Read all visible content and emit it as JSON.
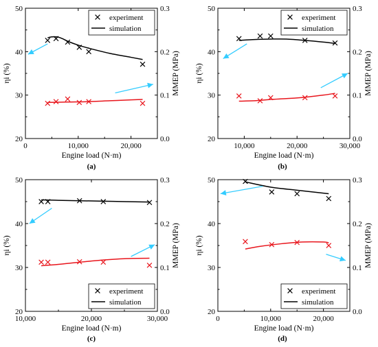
{
  "figure": {
    "colors": {
      "black_series": "#000000",
      "red_series": "#e8141b",
      "arrow": "#33ccff"
    },
    "legend": {
      "marker_label": "experiment",
      "line_label": "simulation"
    }
  },
  "chart_data": [
    {
      "type": "line",
      "panel_label": "(a)",
      "xlabel": "Engine load (N·m)",
      "ylabel_left": "ηi (%)",
      "ylabel_right": "MMEP (MPa)",
      "xlim": [
        0,
        25000
      ],
      "ylim_left": [
        20,
        50
      ],
      "ylim_right": [
        0,
        0.3
      ],
      "xticks": [
        0,
        10000,
        20000
      ],
      "xtick_labels": [
        "0",
        "10,000",
        "20,000"
      ],
      "yticks_left": [
        20,
        30,
        40,
        50
      ],
      "yticks_right": [
        0.0,
        0.1,
        0.2,
        0.3
      ],
      "legend_position": "top-right",
      "eta_experiment": {
        "x": [
          4200,
          5800,
          8000,
          10200,
          12000,
          22200
        ],
        "y": [
          42.6,
          43.0,
          42.2,
          41.0,
          40.0,
          37.1
        ]
      },
      "eta_simulation": {
        "x": [
          4200,
          5000,
          6000,
          7000,
          8000,
          10000,
          12000,
          16000,
          20000,
          22200
        ],
        "y": [
          43.2,
          43.4,
          43.4,
          43.0,
          42.4,
          41.5,
          40.8,
          39.6,
          38.7,
          38.2
        ]
      },
      "mmep_experiment": {
        "x": [
          4200,
          5800,
          8000,
          10200,
          12000,
          22200
        ],
        "y": [
          0.081,
          0.085,
          0.091,
          0.083,
          0.085,
          0.081
        ]
      },
      "mmep_simulation": {
        "x": [
          4200,
          8000,
          12000,
          16000,
          20000,
          22200
        ],
        "y": [
          0.083,
          0.084,
          0.085,
          0.087,
          0.089,
          0.09
        ]
      },
      "arrows": [
        {
          "from": [
            4200,
            41.8
          ],
          "to": [
            500,
            39.4
          ]
        },
        {
          "from": [
            17000,
            30.5
          ],
          "to": [
            24200,
            32.5
          ]
        }
      ]
    },
    {
      "type": "line",
      "panel_label": "(b)",
      "xlabel": "Engine load (N·m)",
      "ylabel_left": "ηi (%)",
      "ylabel_right": "MMEP (MPa)",
      "xlim": [
        5000,
        30000
      ],
      "ylim_left": [
        20,
        50
      ],
      "ylim_right": [
        0,
        0.3
      ],
      "xticks": [
        10000,
        20000,
        30000
      ],
      "xtick_labels": [
        "10,000",
        "20,000",
        "30,000"
      ],
      "yticks_left": [
        20,
        30,
        40,
        50
      ],
      "yticks_right": [
        0.0,
        0.1,
        0.2,
        0.3
      ],
      "legend_position": "top-right",
      "eta_experiment": {
        "x": [
          9000,
          13000,
          15000,
          21500,
          27200
        ],
        "y": [
          43.0,
          43.6,
          43.6,
          42.6,
          42.0
        ]
      },
      "eta_simulation": {
        "x": [
          9000,
          12000,
          15000,
          18000,
          21500,
          25000,
          27200
        ],
        "y": [
          42.6,
          42.8,
          42.9,
          42.9,
          42.6,
          42.2,
          41.9
        ]
      },
      "mmep_experiment": {
        "x": [
          9000,
          13000,
          15000,
          21500,
          27200
        ],
        "y": [
          0.098,
          0.087,
          0.094,
          0.094,
          0.098
        ]
      },
      "mmep_simulation": {
        "x": [
          9000,
          12000,
          15000,
          18000,
          21500,
          25000,
          27200
        ],
        "y": [
          0.086,
          0.087,
          0.09,
          0.092,
          0.095,
          0.1,
          0.104
        ]
      },
      "arrows": [
        {
          "from": [
            10500,
            41.8
          ],
          "to": [
            6000,
            38.4
          ]
        },
        {
          "from": [
            24500,
            31.7
          ],
          "to": [
            29600,
            35.0
          ]
        }
      ]
    },
    {
      "type": "line",
      "panel_label": "(c)",
      "xlabel": "Engine load (N·m)",
      "ylabel_left": "ηi (%)",
      "ylabel_right": "MMEP (MPa)",
      "xlim": [
        10000,
        30000
      ],
      "ylim_left": [
        20,
        50
      ],
      "ylim_right": [
        0,
        0.3
      ],
      "xticks": [
        10000,
        20000,
        30000
      ],
      "xtick_labels": [
        "10,000",
        "20,000",
        "30,000"
      ],
      "yticks_left": [
        20,
        30,
        40,
        50
      ],
      "yticks_right": [
        0.0,
        0.1,
        0.2,
        0.3
      ],
      "legend_position": "bottom-right",
      "eta_experiment": {
        "x": [
          12400,
          13400,
          18200,
          21800,
          28800
        ],
        "y": [
          45.0,
          45.0,
          45.2,
          45.0,
          44.8
        ]
      },
      "eta_simulation": {
        "x": [
          12400,
          15000,
          18200,
          21800,
          25000,
          28800
        ],
        "y": [
          45.4,
          45.3,
          45.2,
          45.1,
          45.0,
          44.9
        ]
      },
      "mmep_experiment": {
        "x": [
          12400,
          13400,
          18200,
          21800,
          28800
        ],
        "y": [
          0.112,
          0.112,
          0.113,
          0.112,
          0.105
        ]
      },
      "mmep_simulation": {
        "x": [
          12400,
          15000,
          18200,
          21800,
          25000,
          28800
        ],
        "y": [
          0.104,
          0.107,
          0.112,
          0.117,
          0.12,
          0.121
        ]
      },
      "arrows": [
        {
          "from": [
            14000,
            43.5
          ],
          "to": [
            10600,
            40.0
          ]
        },
        {
          "from": [
            26000,
            32.5
          ],
          "to": [
            29600,
            35.2
          ]
        }
      ]
    },
    {
      "type": "line",
      "panel_label": "(d)",
      "xlabel": "Engine load (N·m)",
      "ylabel_left": "ηi (%)",
      "ylabel_right": "MMEP (MPa)",
      "xlim": [
        0,
        25000
      ],
      "ylim_left": [
        20,
        50
      ],
      "ylim_right": [
        0,
        0.3
      ],
      "xticks": [
        0,
        10000,
        20000
      ],
      "xtick_labels": [
        "0",
        "10,000",
        "20,000"
      ],
      "yticks_left": [
        20,
        30,
        40,
        50
      ],
      "yticks_right": [
        0.0,
        0.1,
        0.2,
        0.3
      ],
      "legend_position": "bottom-right",
      "eta_experiment": {
        "x": [
          5200,
          10200,
          15000,
          21000
        ],
        "y": [
          49.6,
          47.2,
          46.8,
          45.7
        ]
      },
      "eta_simulation": {
        "x": [
          5200,
          10000,
          15000,
          21000
        ],
        "y": [
          49.5,
          48.3,
          47.6,
          46.8
        ]
      },
      "mmep_experiment": {
        "x": [
          5200,
          10200,
          15000,
          21000
        ],
        "y": [
          0.159,
          0.152,
          0.157,
          0.15
        ]
      },
      "mmep_simulation": {
        "x": [
          5200,
          8000,
          12000,
          16000,
          20000,
          21000
        ],
        "y": [
          0.142,
          0.148,
          0.154,
          0.158,
          0.158,
          0.156
        ]
      },
      "arrows": [
        {
          "from": [
            8500,
            48.5
          ],
          "to": [
            500,
            46.8
          ]
        },
        {
          "from": [
            20500,
            33.0
          ],
          "to": [
            24200,
            31.6
          ]
        }
      ]
    }
  ]
}
